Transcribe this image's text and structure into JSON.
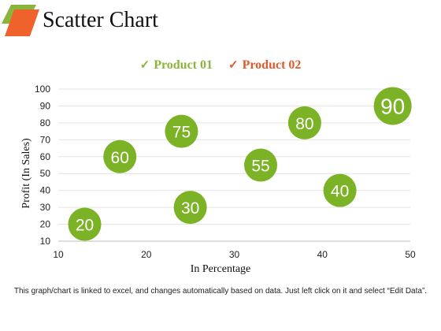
{
  "page": {
    "title": "Scatter Chart",
    "footnote": "This graph/chart is linked to excel, and changes automatically based on data. Just left click on it and select “Edit Data”."
  },
  "colors": {
    "bubble": "#7cb225",
    "product_01": "#8db43a",
    "product_02": "#e05a2b",
    "logo_green": "#8ab53c",
    "logo_orange": "#f0622b"
  },
  "icons": {
    "logo": "parallelogram-logo-icon",
    "legend": "check-icon"
  },
  "chart_data": {
    "type": "scatter",
    "style": "bubble",
    "xlabel": "In Percentage",
    "ylabel": "Profit  (In Sales)",
    "xlim": [
      10,
      50
    ],
    "ylim": [
      10,
      100
    ],
    "xticks": [
      10,
      20,
      30,
      40,
      50
    ],
    "yticks": [
      10,
      20,
      30,
      40,
      50,
      60,
      70,
      80,
      90,
      100
    ],
    "grid": true,
    "legend_position": "top-center",
    "legend": [
      {
        "label": "Product 01",
        "color": "#8db43a"
      },
      {
        "label": "Product 02",
        "color": "#e05a2b"
      }
    ],
    "points": [
      {
        "x": 13,
        "y": 20,
        "label": "20"
      },
      {
        "x": 17,
        "y": 60,
        "label": "60"
      },
      {
        "x": 24,
        "y": 75,
        "label": "75"
      },
      {
        "x": 25,
        "y": 30,
        "label": "30"
      },
      {
        "x": 33,
        "y": 55,
        "label": "55"
      },
      {
        "x": 38,
        "y": 80,
        "label": "80"
      },
      {
        "x": 42,
        "y": 40,
        "label": "40"
      },
      {
        "x": 48,
        "y": 90,
        "label": "90"
      }
    ]
  }
}
